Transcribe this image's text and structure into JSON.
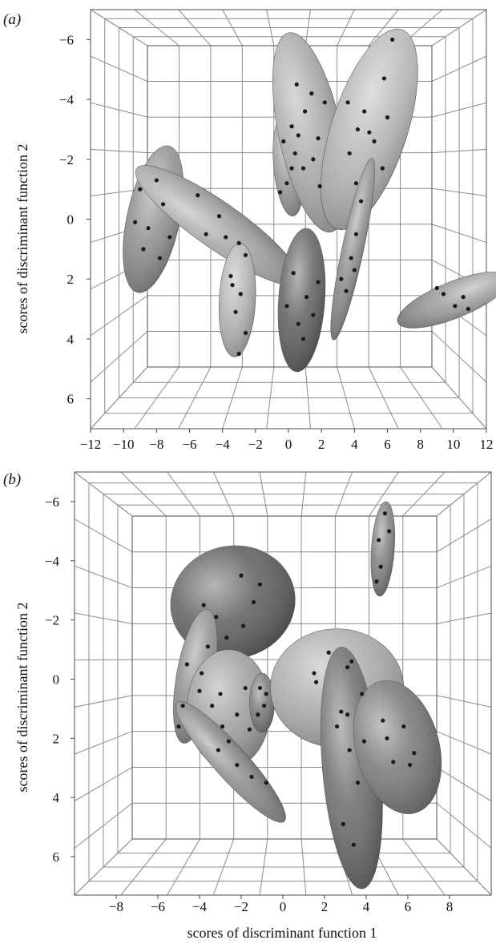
{
  "chart_data": [
    {
      "type": "scatter",
      "panel_label": "(a)",
      "ylabel": "scores of discriminant function 2",
      "xlabel": "",
      "xlim": [
        -12,
        12
      ],
      "ylim": [
        -7,
        7
      ],
      "y_inverted": true,
      "x_ticks": [
        "−12",
        "−10",
        "−8",
        "−6",
        "−4",
        "−2",
        "0",
        "2",
        "4",
        "6",
        "8",
        "10",
        "12"
      ],
      "y_ticks": [
        "−6",
        "−4",
        "−2",
        "0",
        "2",
        "4",
        "6"
      ],
      "ellipses": [
        {
          "cx": -8.2,
          "cy": 0.0,
          "rx": 1.6,
          "ry": 2.5,
          "angle": 12,
          "shade": "#8e8e8e",
          "points": [
            [
              -9,
              -1
            ],
            [
              -8.5,
              0.3
            ],
            [
              -7.6,
              -0.5
            ],
            [
              -8.8,
              1.0
            ],
            [
              -7.2,
              0.6
            ],
            [
              -9.3,
              0.1
            ],
            [
              -8,
              -1.3
            ],
            [
              -7.8,
              1.3
            ]
          ]
        },
        {
          "cx": -4.3,
          "cy": 0.2,
          "rx": 1.4,
          "ry": 3.3,
          "angle": -55,
          "shade": "#a4a4a4",
          "points": [
            [
              -5.5,
              -0.8
            ],
            [
              -4.2,
              -0.1
            ],
            [
              -3,
              0.8
            ],
            [
              -5,
              0.5
            ],
            [
              -2.6,
              1.2
            ],
            [
              -3.8,
              0.6
            ]
          ]
        },
        {
          "cx": -3.1,
          "cy": 2.7,
          "rx": 1.1,
          "ry": 1.9,
          "angle": 3,
          "shade": "#b2b2b2",
          "points": [
            [
              -3.5,
              1.9
            ],
            [
              -2.9,
              2.5
            ],
            [
              -3.2,
              3.1
            ],
            [
              -2.6,
              3.8
            ],
            [
              -3.4,
              2.2
            ],
            [
              -3,
              4.5
            ]
          ]
        },
        {
          "cx": 0.0,
          "cy": -1.8,
          "rx": 0.9,
          "ry": 1.7,
          "angle": -5,
          "shade": "#979797",
          "points": [
            [
              -0.3,
              -2.6
            ],
            [
              0.2,
              -1.7
            ],
            [
              -0.5,
              -0.9
            ],
            [
              0.4,
              -2.2
            ],
            [
              -0.1,
              -1.2
            ],
            [
              0.6,
              -2.8
            ]
          ]
        },
        {
          "cx": 1.3,
          "cy": -2.9,
          "rx": 1.9,
          "ry": 3.4,
          "angle": -12,
          "shade": "#a9a9a9",
          "points": [
            [
              0.5,
              -4.5
            ],
            [
              1.0,
              -3.6
            ],
            [
              1.8,
              -2.7
            ],
            [
              0.2,
              -3.1
            ],
            [
              1.5,
              -2.0
            ],
            [
              2.2,
              -3.9
            ],
            [
              0.9,
              -1.7
            ],
            [
              1.4,
              -4.2
            ],
            [
              1.9,
              -1.1
            ]
          ]
        },
        {
          "cx": 4.9,
          "cy": -3.0,
          "rx": 2.3,
          "ry": 3.5,
          "angle": 18,
          "shade": "#b5b5b5",
          "points": [
            [
              6.3,
              -6.0
            ],
            [
              5.8,
              -4.7
            ],
            [
              4.6,
              -3.6
            ],
            [
              5.2,
              -2.6
            ],
            [
              3.7,
              -2.2
            ],
            [
              4.2,
              -3.0
            ],
            [
              5.7,
              -1.7
            ],
            [
              4.9,
              -2.9
            ],
            [
              3.6,
              -3.9
            ],
            [
              6.0,
              -3.4
            ],
            [
              4.1,
              -1.2
            ]
          ]
        },
        {
          "cx": 3.9,
          "cy": 1.0,
          "rx": 0.65,
          "ry": 3.1,
          "angle": 12,
          "shade": "#8d8d8d",
          "points": [
            [
              3.5,
              2.4
            ],
            [
              3.8,
              1.3
            ],
            [
              4.1,
              0.5
            ],
            [
              4.4,
              -0.6
            ],
            [
              3.2,
              2.0
            ],
            [
              4.0,
              1.7
            ]
          ]
        },
        {
          "cx": 0.8,
          "cy": 2.7,
          "rx": 1.4,
          "ry": 2.4,
          "angle": 4,
          "shade": "#5f5f5f",
          "points": [
            [
              0.3,
              1.8
            ],
            [
              1.1,
              2.6
            ],
            [
              0.6,
              3.5
            ],
            [
              1.8,
              2.1
            ],
            [
              -0.1,
              2.9
            ],
            [
              0.9,
              4.0
            ],
            [
              1.5,
              3.2
            ]
          ]
        },
        {
          "cx": 10.0,
          "cy": 2.7,
          "rx": 1.1,
          "ry": 2.0,
          "angle": 68,
          "shade": "#9a9a9a",
          "points": [
            [
              9.4,
              2.5
            ],
            [
              10.1,
              2.9
            ],
            [
              10.6,
              2.6
            ],
            [
              9.0,
              2.3
            ],
            [
              10.9,
              3.0
            ]
          ]
        }
      ]
    },
    {
      "type": "scatter",
      "panel_label": "(b)",
      "ylabel": "scores of discriminant function 2",
      "xlabel": "scores of discriminant function 1",
      "xlim": [
        -10,
        10
      ],
      "ylim": [
        -7,
        7.3
      ],
      "y_inverted": true,
      "x_ticks": [
        "−8",
        "−6",
        "−4",
        "−2",
        "0",
        "2",
        "4",
        "6",
        "8"
      ],
      "y_ticks": [
        "−6",
        "−4",
        "−2",
        "0",
        "2",
        "4",
        "6"
      ],
      "ellipses": [
        {
          "cx": 4.8,
          "cy": -4.4,
          "rx": 0.55,
          "ry": 1.6,
          "angle": 4,
          "shade": "#7e7e7e",
          "points": [
            [
              4.9,
              -5.6
            ],
            [
              4.6,
              -4.7
            ],
            [
              4.7,
              -3.8
            ],
            [
              5.1,
              -5.0
            ],
            [
              4.5,
              -3.3
            ]
          ]
        },
        {
          "cx": -2.4,
          "cy": -2.6,
          "rx": 3.0,
          "ry": 1.9,
          "angle": -12,
          "shade": "#5e5e5e",
          "points": [
            [
              -2.0,
              -3.5
            ],
            [
              -3.2,
              -2.1
            ],
            [
              -1.4,
              -2.6
            ],
            [
              -2.7,
              -1.4
            ],
            [
              -1.1,
              -3.2
            ],
            [
              -3.8,
              -2.5
            ],
            [
              -1.9,
              -1.8
            ]
          ]
        },
        {
          "cx": -4.2,
          "cy": -0.1,
          "rx": 0.9,
          "ry": 2.3,
          "angle": 10,
          "shade": "#8e8e8e",
          "points": [
            [
              -4.6,
              -0.5
            ],
            [
              -4.0,
              0.4
            ],
            [
              -3.6,
              -1.1
            ],
            [
              -4.8,
              0.9
            ],
            [
              -5.0,
              1.6
            ],
            [
              -3.9,
              -0.2
            ]
          ]
        },
        {
          "cx": -2.6,
          "cy": 1.0,
          "rx": 2.0,
          "ry": 2.0,
          "angle": 0,
          "shade": "#9e9e9e",
          "points": [
            [
              -3.0,
              0.5
            ],
            [
              -2.2,
              1.2
            ],
            [
              -1.8,
              0.3
            ],
            [
              -2.9,
              1.6
            ],
            [
              -1.6,
              1.7
            ],
            [
              -3.4,
              0.9
            ]
          ]
        },
        {
          "cx": -1.0,
          "cy": 0.8,
          "rx": 0.6,
          "ry": 1.0,
          "angle": 0,
          "shade": "#767676",
          "points": [
            [
              -1.1,
              0.3
            ],
            [
              -0.9,
              0.9
            ],
            [
              -1.2,
              1.2
            ],
            [
              -0.8,
              0.5
            ]
          ]
        },
        {
          "cx": -2.5,
          "cy": 2.8,
          "rx": 0.8,
          "ry": 2.7,
          "angle": -42,
          "shade": "#8b8b8b",
          "points": [
            [
              -3.1,
              2.4
            ],
            [
              -2.2,
              2.9
            ],
            [
              -1.5,
              3.3
            ],
            [
              -0.8,
              3.5
            ],
            [
              -2.6,
              2.1
            ]
          ]
        },
        {
          "cx": 2.6,
          "cy": 0.3,
          "rx": 3.2,
          "ry": 2.0,
          "angle": 0,
          "shade": "#aaaaaa",
          "points": [
            [
              1.6,
              0.1
            ],
            [
              2.2,
              -0.9
            ],
            [
              3.1,
              -0.4
            ],
            [
              3.8,
              0.5
            ],
            [
              2.8,
              1.1
            ],
            [
              1.5,
              -0.2
            ],
            [
              3.3,
              -0.6
            ]
          ]
        },
        {
          "cx": 3.3,
          "cy": 3.0,
          "rx": 1.4,
          "ry": 4.1,
          "angle": -5,
          "shade": "#6b6b6b",
          "points": [
            [
              2.6,
              1.6
            ],
            [
              3.2,
              2.4
            ],
            [
              3.6,
              3.5
            ],
            [
              2.9,
              4.9
            ],
            [
              3.9,
              2.1
            ],
            [
              3.4,
              5.6
            ],
            [
              3.1,
              1.2
            ]
          ]
        },
        {
          "cx": 5.5,
          "cy": 2.3,
          "rx": 2.0,
          "ry": 2.3,
          "angle": -15,
          "shade": "#777777",
          "points": [
            [
              5.0,
              2.0
            ],
            [
              5.8,
              1.6
            ],
            [
              6.3,
              2.5
            ],
            [
              5.3,
              2.8
            ],
            [
              4.8,
              1.4
            ],
            [
              6.1,
              2.9
            ]
          ]
        }
      ]
    }
  ]
}
